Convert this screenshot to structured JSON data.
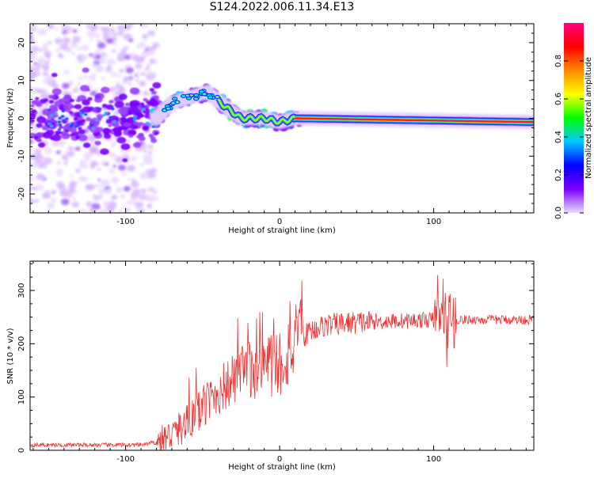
{
  "title": "S124.2022.006.11.34.E13",
  "chart_data": [
    {
      "type": "heatmap",
      "xlabel": "Height of straight line (km)",
      "ylabel": "Frequency (Hz)",
      "xlim": [
        -162,
        165
      ],
      "ylim": [
        -25,
        25
      ],
      "xticks": [
        -100,
        0,
        100
      ],
      "yticks": [
        -20,
        -10,
        0,
        10,
        20
      ],
      "grid": false,
      "colorbar": {
        "label": "Normalized spectral amplitude",
        "range": [
          0,
          1
        ],
        "ticks": [
          "0.0",
          "0.2",
          "0.4",
          "0.6",
          "0.8"
        ],
        "colormap": [
          "#eadcff",
          "#7a00ff",
          "#0000ff",
          "#00c8ff",
          "#00ff00",
          "#ffff00",
          "#ff8800",
          "#ff0000",
          "#ff0080"
        ]
      },
      "ridge": [
        {
          "x": -162,
          "freq": 0
        },
        {
          "x": -80,
          "freq": 0
        },
        {
          "x": -70,
          "freq": 4
        },
        {
          "x": -55,
          "freq": 6
        },
        {
          "x": -47,
          "freq": 7
        },
        {
          "x": -35,
          "freq": 3
        },
        {
          "x": -25,
          "freq": 0
        },
        {
          "x": -10,
          "freq": 0
        },
        {
          "x": 0,
          "freq": -1
        },
        {
          "x": 10,
          "freq": 0
        },
        {
          "x": 165,
          "freq": -1
        }
      ]
    },
    {
      "type": "line",
      "xlabel": "Height of straight line (km)",
      "ylabel": "SNR (10 * v/v)",
      "xlim": [
        -162,
        165
      ],
      "ylim": [
        0,
        355
      ],
      "xticks": [
        -100,
        0,
        100
      ],
      "yticks": [
        0,
        100,
        200,
        300
      ],
      "grid": false,
      "series": [
        {
          "color": "#ee3333",
          "points": [
            [
              -162,
              10
            ],
            [
              -120,
              10
            ],
            [
              -90,
              10
            ],
            [
              -80,
              15
            ],
            [
              -70,
              30
            ],
            [
              -60,
              50
            ],
            [
              -50,
              80
            ],
            [
              -40,
              110
            ],
            [
              -30,
              130
            ],
            [
              -20,
              150
            ],
            [
              -10,
              160
            ],
            [
              0,
              165
            ],
            [
              10,
              200
            ],
            [
              20,
              225
            ],
            [
              30,
              235
            ],
            [
              50,
              240
            ],
            [
              70,
              242
            ],
            [
              100,
              245
            ],
            [
              110,
              245
            ],
            [
              130,
              245
            ],
            [
              165,
              245
            ]
          ]
        }
      ]
    }
  ]
}
